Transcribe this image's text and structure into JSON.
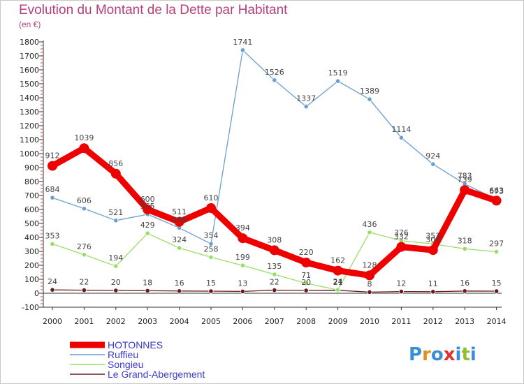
{
  "chart_data": {
    "type": "line",
    "title": "Evolution du Montant de la Dette par Habitant",
    "subtitle": "(en €)",
    "x": [
      "2000",
      "2001",
      "2002",
      "2003",
      "2004",
      "2005",
      "2006",
      "2007",
      "2008",
      "2009",
      "2010",
      "2011",
      "2012",
      "2013",
      "2014"
    ],
    "ylim": [
      -100,
      1800
    ],
    "yticks": [
      -100,
      0,
      100,
      200,
      300,
      400,
      500,
      600,
      700,
      800,
      900,
      1000,
      1100,
      1200,
      1300,
      1400,
      1500,
      1600,
      1700,
      1800
    ],
    "grid": false,
    "legend": "bottom-left",
    "series": [
      {
        "name": "HOTONNES",
        "color": "#ee0000",
        "values": [
          912,
          1039,
          856,
          600,
          511,
          610,
          394,
          308,
          220,
          162,
          128,
          332,
          309,
          739,
          663
        ]
      },
      {
        "name": "Ruffieu",
        "color": "#6a9ed0",
        "values": [
          684,
          606,
          521,
          565,
          468,
          354,
          1741,
          1526,
          1337,
          1519,
          1389,
          1114,
          924,
          783,
          673
        ]
      },
      {
        "name": "Songieu",
        "color": "#99dd66",
        "values": [
          353,
          276,
          194,
          429,
          324,
          258,
          199,
          135,
          71,
          24,
          436,
          376,
          353,
          318,
          297
        ]
      },
      {
        "name": "Le Grand-Abergement",
        "color": "#6b1a1a",
        "values": [
          24,
          22,
          20,
          18,
          16,
          15,
          13,
          22,
          20,
          21,
          8,
          12,
          11,
          16,
          15
        ]
      }
    ]
  },
  "logo": {
    "text": "Proxiti"
  }
}
